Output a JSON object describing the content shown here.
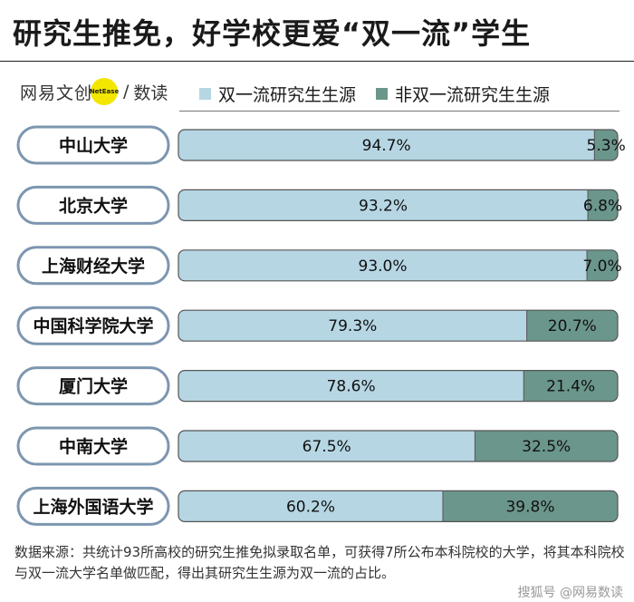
{
  "title": "研究生推免，好学校更爱“双一流”学生",
  "brand": {
    "wordmark": "网易文创",
    "badge": "NetEase",
    "slash": "/",
    "section": "数读"
  },
  "legend": {
    "shuangyiliu": {
      "label": "双一流研究生生源",
      "color": "#b6d6e4"
    },
    "fei": {
      "label": "非双一流研究生生源",
      "color": "#6b968c"
    }
  },
  "chart_data": {
    "type": "bar",
    "orientation": "horizontal",
    "stacked": true,
    "normalized": true,
    "categories": [
      "中山大学",
      "北京大学",
      "上海财经大学",
      "中国科学院大学",
      "厦门大学",
      "中南大学",
      "上海外国语大学"
    ],
    "series": [
      {
        "name": "双一流研究生生源",
        "values": [
          94.7,
          93.2,
          93.0,
          79.3,
          78.6,
          67.5,
          60.2
        ],
        "labels": [
          "94.7%",
          "93.2%",
          "93.0%",
          "79.3%",
          "78.6%",
          "67.5%",
          "60.2%"
        ]
      },
      {
        "name": "非双一流研究生生源",
        "values": [
          5.3,
          6.8,
          7.0,
          20.7,
          21.4,
          32.5,
          39.8
        ],
        "labels": [
          "5.3%",
          "6.8%",
          "7.0%",
          "20.7%",
          "21.4%",
          "32.5%",
          "39.8%"
        ]
      }
    ],
    "xlim": [
      0,
      100
    ],
    "legend_position": "top",
    "grid": false
  },
  "colors": {
    "bar_stroke": "#555555",
    "label_stroke": "#7d96b0"
  },
  "footnote": "数据来源：共统计93所高校的研究生推免拟录取名单，可获得7所公布本科院校的大学，将其本科院校与双一流大学名单做匹配，得出其研究生生源为双一流的占比。",
  "footer_brand": "搜狐号 @网易数读"
}
